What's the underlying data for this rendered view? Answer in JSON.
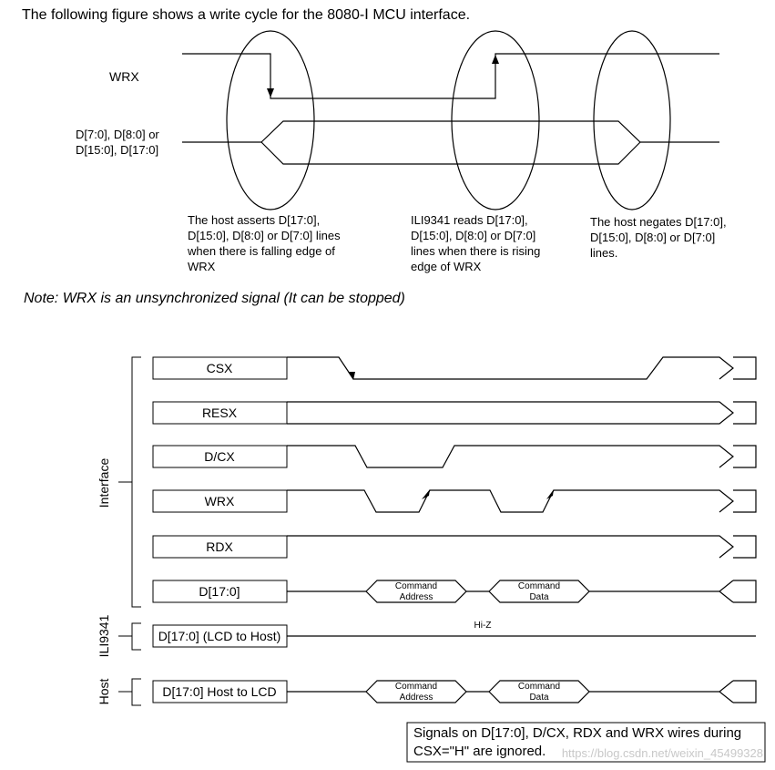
{
  "header": {
    "title": "The following figure shows a write cycle for the 8080-Ⅰ MCU interface."
  },
  "top_diagram": {
    "wrx_label": "WRX",
    "data_label_line1": "D[7:0], D[8:0] or",
    "data_label_line2": "D[15:0], D[17:0]",
    "annotation_1": [
      "The host asserts D[17:0],",
      "D[15:0], D[8:0] or D[7:0] lines",
      "when there is falling edge of",
      "WRX"
    ],
    "annotation_2": [
      "ILI9341 reads D[17:0],",
      "D[15:0], D[8:0] or D[7:0]",
      "lines when there is rising",
      "edge of WRX"
    ],
    "annotation_3": [
      "The host negates D[17:0],",
      "D[15:0], D[8:0] or D[7:0]",
      "lines."
    ]
  },
  "note": "Note: WRX is an unsynchronized signal (It can be stopped)",
  "bottom_diagram": {
    "group_interface": "Interface",
    "group_ili": "ILI9341",
    "group_host": "Host",
    "signals": {
      "csx": "CSX",
      "resx": "RESX",
      "dcx": "D/CX",
      "wrx": "WRX",
      "rdx": "RDX",
      "data": "D[17:0]",
      "lcd_to_host": "D[17:0] (LCD to Host)",
      "host_to_lcd": "D[17:0] Host to LCD"
    },
    "hiz": "Hi-Z",
    "cmd_address": [
      "Command",
      "Address"
    ],
    "cmd_data": [
      "Command",
      "Data"
    ],
    "footnote_line1": "Signals on D[17:0], D/CX, RDX and WRX wires during",
    "footnote_line2": "CSX=\"H\"  are ignored.",
    "watermark": "https://blog.csdn.net/weixin_45499328"
  }
}
